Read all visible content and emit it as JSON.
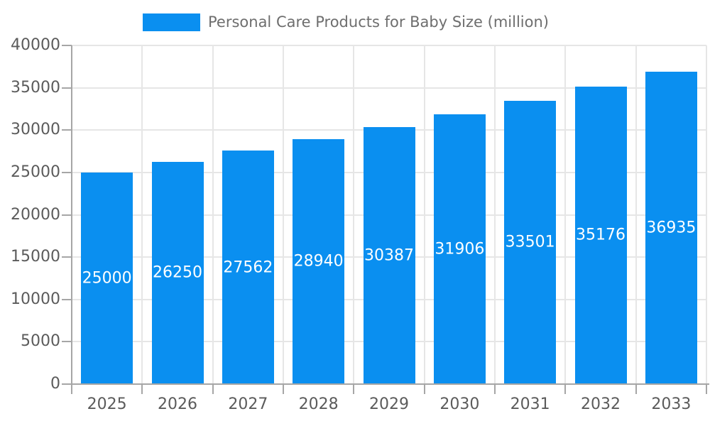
{
  "chart_data": {
    "type": "bar",
    "title": "Personal Care Products for Baby Size (million)",
    "legend": [
      "Personal Care Products for Baby Size (million)"
    ],
    "legend_position": "top",
    "categories": [
      "2025",
      "2026",
      "2027",
      "2028",
      "2029",
      "2030",
      "2031",
      "2032",
      "2033"
    ],
    "values": [
      25000,
      26250,
      27562,
      28940,
      30387,
      31906,
      33501,
      35176,
      36935
    ],
    "xlabel": "",
    "ylabel": "",
    "ylim": [
      0,
      40000
    ],
    "y_ticks": [
      0,
      5000,
      10000,
      15000,
      20000,
      25000,
      30000,
      35000,
      40000
    ],
    "grid": true,
    "bar_color": "#0a8ff0",
    "value_label_color": "#ffffff",
    "axis_color": "#a6a6a6",
    "grid_color": "#e6e6e6",
    "tick_label_color": "#5b5b5b",
    "legend_text_color": "#6e6e6e"
  }
}
